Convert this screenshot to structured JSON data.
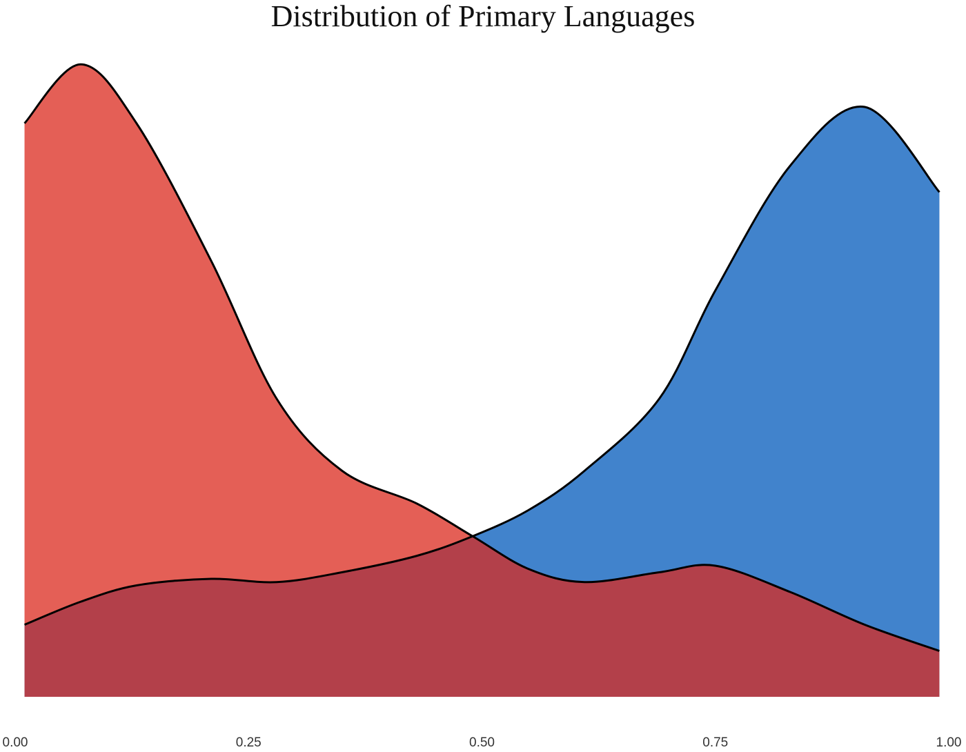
{
  "chart_data": {
    "type": "area",
    "title": "Distribution of Primary Languages",
    "x": [
      0.01,
      0.07,
      0.13,
      0.21,
      0.28,
      0.35,
      0.43,
      0.49,
      0.55,
      0.61,
      0.69,
      0.75,
      0.83,
      0.91,
      0.99
    ],
    "series": [
      {
        "color": "#e45f56",
        "values": [
          1.75,
          1.93,
          1.75,
          1.33,
          0.91,
          0.69,
          0.59,
          0.49,
          0.39,
          0.35,
          0.38,
          0.4,
          0.32,
          0.22,
          0.14
        ]
      },
      {
        "color": "#4183cc",
        "values": [
          0.22,
          0.29,
          0.34,
          0.36,
          0.35,
          0.38,
          0.43,
          0.49,
          0.57,
          0.69,
          0.91,
          1.24,
          1.62,
          1.8,
          1.54
        ]
      }
    ],
    "overlap_color": "#b3404a",
    "line_color": "#000000",
    "xlim": [
      0,
      1
    ],
    "xticks": [
      {
        "value": 0,
        "label": "0.00"
      },
      {
        "value": 0.25,
        "label": "0.25"
      },
      {
        "value": 0.5,
        "label": "0.50"
      },
      {
        "value": 0.75,
        "label": "0.75"
      },
      {
        "value": 1,
        "label": "1.00"
      }
    ],
    "ylim": [
      0,
      2
    ],
    "grid": false
  }
}
